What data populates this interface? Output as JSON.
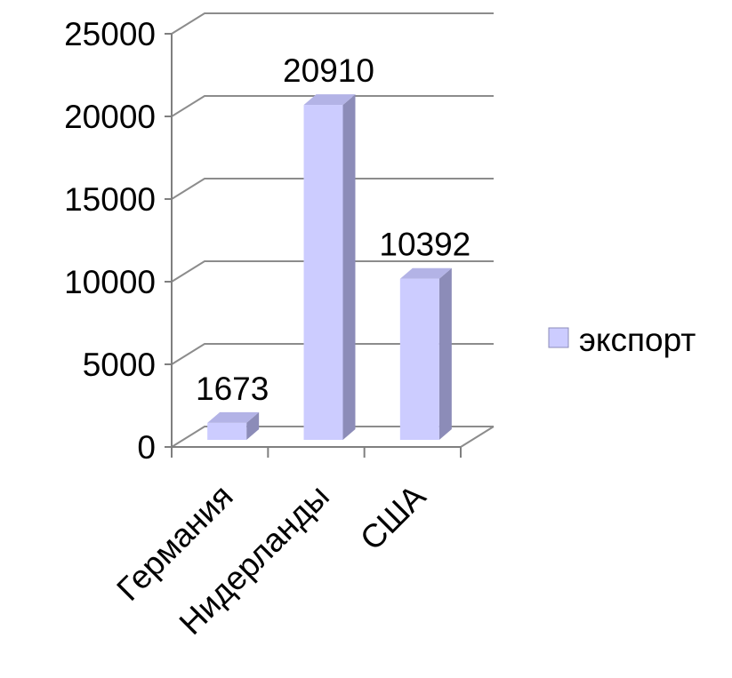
{
  "chart_data": {
    "type": "bar",
    "title": "",
    "xlabel": "",
    "ylabel": "",
    "categories": [
      "Германия",
      "Нидерланды",
      "США"
    ],
    "series": [
      {
        "name": "экспорт",
        "values": [
          1673,
          20910,
          10392
        ]
      }
    ],
    "ylim": [
      0,
      25000
    ],
    "yticks": [
      0,
      5000,
      10000,
      15000,
      20000,
      25000
    ],
    "data_labels": true,
    "grid": true,
    "legend_position": "right",
    "style": "3d-column",
    "colors": {
      "bar_front": "#ccccff",
      "bar_side": "#8c8cb8",
      "bar_top": "#b3b3e6",
      "gridline": "#8c8c8c",
      "axis": "#7f7f7f"
    }
  }
}
